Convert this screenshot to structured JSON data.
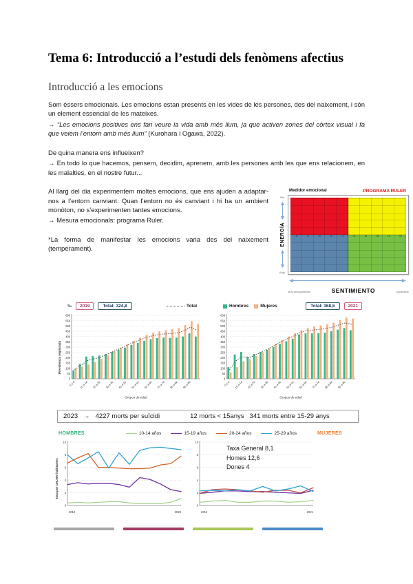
{
  "page": {
    "title": "Tema 6: Introducció a l’estudi dels fenòmens afectius",
    "section_heading": "Introducció a les emocions"
  },
  "paragraphs": {
    "p1": "Som éssers emocionals. Les emocions estan presents en les vides de les persones, des del naixement, i són un element essencial de les mateixes.",
    "quote_arrow": "→ ",
    "quote_italic": "“Les emocions positives ens fan veure la vida amb més llum, ja que activen zones del còrtex visual i fa que veiem l’entorn amb més llum”",
    "quote_cite": " (Kurohara i Ogawa, 2022).",
    "q1": "De quina manera ens influeixen?",
    "p2": "→ En todo lo que hacemos, pensem, decidim, aprenem, amb les persones amb les que ens relacionem, en les malalties, en el nostre futur...",
    "p3": "Al llarg del dia experimentem moltes emocions, que ens ajuden a adaptar-nos a l’entorn canviant. Quan l’entorn no és canviant i hi ha un ambient monòton, no s’experimenten tantes emocions.",
    "p4": "→ Mesura emocionals: programa Ruler.",
    "p5": "*La forma de manifestar les emocions varia des del naixement (temperament)."
  },
  "ruler": {
    "title_left": "Medidor emocional",
    "title_right": "PROGRAMA RULER",
    "y_axis": "ENERGÍA",
    "x_axis": "SENTIMIENTO",
    "y_top": "Alta",
    "y_bottom": "Baja",
    "x_left": "Muy desagradable",
    "x_right": "Agradable",
    "numbers": [
      "-5",
      "-4",
      "-3",
      "-2",
      "-1",
      "+1",
      "+2",
      "+3",
      "+4",
      "+5"
    ],
    "colors": {
      "top_left": "#e81123",
      "top_right": "#f5f100",
      "bottom_left": "#5c85ad",
      "bottom_right": "#77c043"
    }
  },
  "stats_box": {
    "year": "2023",
    "arrow": "→",
    "main": "4227 morts per suïcidi",
    "sub1": "12 morts < 15anys",
    "sub2": "341 morts entre 15-29 anys"
  },
  "suicide_legend": {
    "hombres": "HOMBRES",
    "mujeres": "MUJERES",
    "hombres_color": "#2db37a",
    "mujeres_color": "#ed7d31",
    "items": [
      {
        "label": "10-14 años",
        "color": "#a9d18e"
      },
      {
        "label": "15-19 años",
        "color": "#7030a0"
      },
      {
        "label": "20-24 años",
        "color": "#d2622a"
      },
      {
        "label": "25-29 años",
        "color": "#2fa3cf"
      }
    ]
  },
  "footer_bar_colors": [
    "#a6a6a6",
    "#a23b64",
    "#a8c65a",
    "#4a89c8"
  ],
  "chart_data": [
    {
      "type": "bar",
      "mount": "bars2019",
      "title_badge": "2019",
      "total_label": "Total: 324,8",
      "legend_total": "Total",
      "permille": "‰",
      "ylabel": "Prevalencia registrada",
      "xlabel": "Grupos de edad",
      "ylim": [
        0,
        600
      ],
      "ystep": 50,
      "categories": [
        "0 a 4",
        "5 a 9",
        "10 a 14",
        "15 a 19",
        "20 a 24",
        "25 a 29",
        "30 a 34",
        "35 a 39",
        "40 a 44",
        "45 a 49",
        "50 a 54",
        "55 a 59",
        "60 a 64",
        "65 a 69",
        "70 a 74",
        "75 a 79",
        "80 a 84",
        "85 a 89",
        "90 a 94",
        "95 +"
      ],
      "series": [
        {
          "name": "Hombres",
          "color": "#35b789",
          "values": [
            80,
            140,
            210,
            215,
            220,
            235,
            255,
            275,
            295,
            320,
            340,
            360,
            375,
            385,
            390,
            385,
            390,
            400,
            430,
            400
          ]
        },
        {
          "name": "Mujeres",
          "color": "#f4b183",
          "values": [
            95,
            115,
            135,
            160,
            190,
            225,
            260,
            295,
            330,
            360,
            390,
            415,
            435,
            450,
            460,
            470,
            480,
            510,
            545,
            520
          ]
        }
      ],
      "total_series": [
        88,
        128,
        172,
        188,
        205,
        230,
        258,
        285,
        313,
        340,
        365,
        388,
        405,
        418,
        425,
        428,
        435,
        455,
        488,
        460
      ]
    },
    {
      "type": "bar",
      "mount": "bars2021",
      "title_badge": "2021",
      "total_label": "Total: 368,5",
      "legend": [
        {
          "name": "Hombres",
          "color": "#35b789"
        },
        {
          "name": "Mujeres",
          "color": "#f4b183"
        }
      ],
      "xlabel": "Grupos de edad",
      "ylim": [
        0,
        600
      ],
      "ystep": 50,
      "categories": [
        "0 a 4",
        "5 a 9",
        "10 a 14",
        "15 a 19",
        "20 a 24",
        "25 a 29",
        "30 a 34",
        "35 a 39",
        "40 a 44",
        "45 a 49",
        "50 a 54",
        "55 a 59",
        "60 a 64",
        "65 a 69",
        "70 a 74",
        "75 a 79",
        "80 a 84",
        "85 a 89",
        "90 a 94",
        "95 +"
      ],
      "series": [
        {
          "name": "Hombres",
          "color": "#35b789",
          "values": [
            110,
            230,
            255,
            210,
            235,
            255,
            275,
            300,
            330,
            355,
            380,
            420,
            430,
            430,
            432,
            437,
            450,
            465,
            480,
            460
          ]
        },
        {
          "name": "Mujeres",
          "color": "#f4b183",
          "values": [
            60,
            110,
            165,
            185,
            215,
            250,
            290,
            330,
            365,
            400,
            430,
            460,
            480,
            495,
            505,
            515,
            530,
            555,
            580,
            570
          ]
        }
      ],
      "total_series": [
        85,
        170,
        210,
        198,
        225,
        253,
        283,
        315,
        348,
        378,
        405,
        440,
        455,
        462,
        468,
        476,
        490,
        510,
        530,
        515
      ]
    },
    {
      "type": "line",
      "mount": "linesHombres",
      "group": "HOMBRES",
      "ylabel": "Tasa por 100.000 habitantes",
      "ylim": [
        0,
        10
      ],
      "ystep": 2,
      "xticks": [
        "2012",
        "2023"
      ],
      "x": [
        2012,
        2013,
        2014,
        2015,
        2016,
        2017,
        2018,
        2019,
        2020,
        2021,
        2022,
        2023
      ],
      "series": [
        {
          "name": "10-14 años",
          "color": "#a9d18e",
          "values": [
            0.4,
            0.5,
            0.4,
            0.5,
            0.6,
            0.6,
            0.4,
            0.3,
            0.3,
            0.3,
            0.5,
            1.1
          ]
        },
        {
          "name": "15-19 años",
          "color": "#7030a0",
          "values": [
            3.3,
            3.6,
            3.4,
            3.5,
            3.5,
            3.3,
            2.9,
            4.4,
            4.1,
            3.4,
            2.5,
            2.2
          ]
        },
        {
          "name": "20-24 años",
          "color": "#d2622a",
          "values": [
            6.7,
            7.5,
            8.2,
            6.0,
            6.0,
            5.9,
            5.8,
            5.8,
            5.9,
            6.4,
            6.6,
            7.8
          ]
        },
        {
          "name": "25-29 años",
          "color": "#2fa3cf",
          "values": [
            8.0,
            6.6,
            7.5,
            8.5,
            5.9,
            8.3,
            6.5,
            8.7,
            9.1,
            9.2,
            9.0,
            8.8
          ]
        }
      ]
    },
    {
      "type": "line",
      "mount": "linesMujeres",
      "group": "MUJERES",
      "annotation": [
        "Taxa General 8,1",
        "Homes 12,6",
        "Dones 4"
      ],
      "ylim": [
        0,
        10
      ],
      "ystep": 2,
      "xticks": [
        "2012",
        "2021"
      ],
      "x": [
        2012,
        2013,
        2014,
        2015,
        2016,
        2017,
        2018,
        2019,
        2020,
        2021
      ],
      "series": [
        {
          "name": "10-14 años",
          "color": "#a9d18e",
          "values": [
            0.5,
            0.7,
            0.8,
            0.5,
            0.5,
            0.7,
            0.7,
            0.5,
            0.6,
            0.8
          ]
        },
        {
          "name": "15-19 años",
          "color": "#7030a0",
          "values": [
            1.9,
            2.1,
            2.3,
            2.3,
            2.2,
            2.2,
            2.1,
            2.0,
            1.9,
            2.4
          ]
        },
        {
          "name": "20-24 años",
          "color": "#c0504d",
          "values": [
            1.9,
            2.5,
            2.6,
            2.5,
            2.3,
            2.1,
            2.4,
            2.4,
            2.0,
            2.8
          ]
        },
        {
          "name": "25-29 años",
          "color": "#2fa3cf",
          "values": [
            2.3,
            2.4,
            2.3,
            2.5,
            2.3,
            3.0,
            2.3,
            2.6,
            3.1,
            2.2
          ]
        }
      ]
    }
  ]
}
